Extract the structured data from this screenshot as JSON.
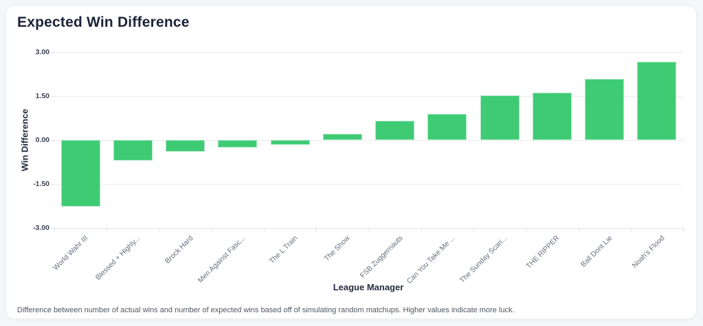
{
  "card": {
    "title": "Expected Win Difference",
    "footnote": "Difference between number of actual wins and number of expected wins based off of simulating random matchups. Higher values indicate more luck."
  },
  "colors": {
    "bar_fill": "#3fcb74",
    "bar_border": "#a5e6c1",
    "gridline": "#e9ebee",
    "title_text": "#1a2438",
    "axis_title_text": "#232c40",
    "ytick_text": "#3c4354",
    "category_text": "#676e7b",
    "card_background": "#ffffff",
    "page_background": "#f5f6f9"
  },
  "chart_data": {
    "type": "bar",
    "title": "Expected Win Difference",
    "xlabel": "League Manager",
    "ylabel": "Win Difference",
    "ylim": [
      -3,
      3
    ],
    "yticks": [
      3.0,
      1.5,
      0.0,
      -1.5,
      -3.0
    ],
    "ytick_labels": [
      "3.00",
      "1.50",
      "0.00",
      "-1.50",
      "-3.00"
    ],
    "grid": true,
    "legend": "none",
    "categories": [
      "World Wahr III",
      "Blessed + Highly...",
      "Brock Hard",
      "Men Against Fasc...",
      "The L Train",
      "The Show",
      "FSB Zuggernauts",
      "Can You Take Me ...",
      "The Sunday Scari...",
      "THE RIPPER",
      "Ball Dont Lie",
      "Noah's Flood"
    ],
    "values": [
      -2.28,
      -0.7,
      -0.41,
      -0.26,
      -0.16,
      0.2,
      0.66,
      0.89,
      1.52,
      1.61,
      2.08,
      2.67
    ]
  }
}
